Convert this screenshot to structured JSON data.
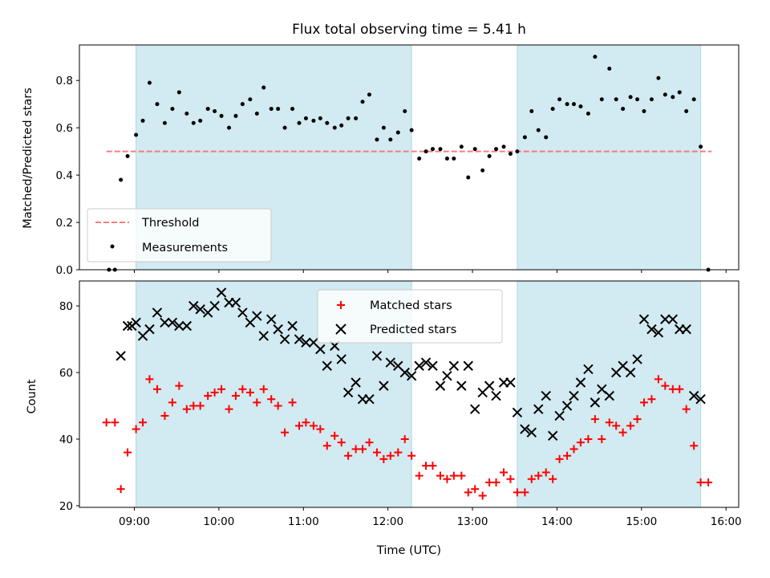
{
  "chart_data": {
    "type": "scatter",
    "title": "Flux total observing time = 5.41 h",
    "xlabel": "Time (UTC)",
    "xlim": [
      8.35,
      16.15
    ],
    "xticks": [
      {
        "value": 9,
        "label": "09:00"
      },
      {
        "value": 10,
        "label": "10:00"
      },
      {
        "value": 11,
        "label": "11:00"
      },
      {
        "value": 12,
        "label": "12:00"
      },
      {
        "value": 13,
        "label": "13:00"
      },
      {
        "value": 14,
        "label": "14:00"
      },
      {
        "value": 15,
        "label": "15:00"
      },
      {
        "value": 16,
        "label": "16:00"
      }
    ],
    "shaded_spans": [
      [
        9.02,
        12.28
      ],
      [
        13.53,
        15.7
      ]
    ],
    "shade_color": "#add8e6",
    "panels": [
      {
        "ylabel": "Matched/Predicted stars",
        "ylim": [
          0,
          0.95
        ],
        "yticks": [
          {
            "value": 0,
            "label": "0.0"
          },
          {
            "value": 0.2,
            "label": "0.2"
          },
          {
            "value": 0.4,
            "label": "0.4"
          },
          {
            "value": 0.6,
            "label": "0.6"
          },
          {
            "value": 0.8,
            "label": "0.8"
          }
        ],
        "threshold": {
          "name": "Threshold",
          "value": 0.5,
          "x_range": [
            8.67,
            15.83
          ],
          "color": "#f08080"
        },
        "legend_position": "lower-left",
        "legend": [
          {
            "name": "Threshold",
            "marker": "dashed-line",
            "color": "#f08080"
          },
          {
            "name": "Measurements",
            "marker": "dot",
            "color": "#000000"
          }
        ],
        "series": [
          {
            "name": "Measurements",
            "marker": "dot",
            "color": "#000000",
            "x": [
              8.7,
              8.77,
              8.84,
              8.92,
              9.02,
              9.1,
              9.18,
              9.27,
              9.36,
              9.45,
              9.53,
              9.62,
              9.7,
              9.78,
              9.87,
              9.95,
              10.03,
              10.12,
              10.2,
              10.28,
              10.37,
              10.45,
              10.53,
              10.62,
              10.7,
              10.78,
              10.87,
              10.95,
              11.03,
              11.12,
              11.2,
              11.28,
              11.37,
              11.45,
              11.53,
              11.62,
              11.7,
              11.78,
              11.87,
              11.95,
              12.03,
              12.12,
              12.2,
              12.28,
              12.37,
              12.45,
              12.53,
              12.62,
              12.7,
              12.78,
              12.87,
              12.95,
              13.03,
              13.12,
              13.2,
              13.28,
              13.37,
              13.45,
              13.53,
              13.62,
              13.7,
              13.78,
              13.87,
              13.95,
              14.03,
              14.12,
              14.2,
              14.28,
              14.37,
              14.45,
              14.53,
              14.62,
              14.7,
              14.78,
              14.87,
              14.95,
              15.03,
              15.12,
              15.2,
              15.28,
              15.37,
              15.45,
              15.53,
              15.62,
              15.7,
              15.79
            ],
            "y": [
              0.0,
              0.0,
              0.38,
              0.48,
              0.57,
              0.63,
              0.79,
              0.7,
              0.62,
              0.68,
              0.75,
              0.66,
              0.62,
              0.63,
              0.68,
              0.67,
              0.65,
              0.6,
              0.65,
              0.7,
              0.72,
              0.66,
              0.77,
              0.68,
              0.68,
              0.6,
              0.68,
              0.62,
              0.64,
              0.63,
              0.64,
              0.62,
              0.6,
              0.61,
              0.64,
              0.64,
              0.71,
              0.74,
              0.55,
              0.6,
              0.55,
              0.58,
              0.67,
              0.59,
              0.47,
              0.5,
              0.51,
              0.51,
              0.47,
              0.47,
              0.52,
              0.39,
              0.51,
              0.42,
              0.48,
              0.51,
              0.52,
              0.49,
              0.5,
              0.56,
              0.67,
              0.59,
              0.56,
              0.68,
              0.72,
              0.7,
              0.7,
              0.69,
              0.66,
              0.9,
              0.72,
              0.85,
              0.72,
              0.68,
              0.73,
              0.72,
              0.67,
              0.72,
              0.81,
              0.74,
              0.73,
              0.75,
              0.67,
              0.72,
              0.52,
              0.0
            ]
          }
        ]
      },
      {
        "ylabel": "Count",
        "ylim": [
          19.5,
          87.5
        ],
        "yticks": [
          {
            "value": 20,
            "label": "20"
          },
          {
            "value": 40,
            "label": "40"
          },
          {
            "value": 60,
            "label": "60"
          },
          {
            "value": 80,
            "label": "80"
          }
        ],
        "legend_position": "upper-center",
        "legend": [
          {
            "name": "Matched stars",
            "marker": "plus",
            "color": "#ff0000"
          },
          {
            "name": "Predicted stars",
            "marker": "x",
            "color": "#000000"
          }
        ],
        "series": [
          {
            "name": "Matched stars",
            "marker": "plus",
            "color": "#ff0000",
            "x": [
              8.67,
              8.77,
              8.84,
              8.92,
              9.02,
              9.1,
              9.18,
              9.27,
              9.36,
              9.45,
              9.53,
              9.62,
              9.7,
              9.78,
              9.87,
              9.95,
              10.03,
              10.12,
              10.2,
              10.28,
              10.37,
              10.45,
              10.53,
              10.62,
              10.7,
              10.78,
              10.87,
              10.95,
              11.03,
              11.12,
              11.2,
              11.28,
              11.37,
              11.45,
              11.53,
              11.62,
              11.7,
              11.78,
              11.87,
              11.95,
              12.03,
              12.12,
              12.2,
              12.28,
              12.37,
              12.45,
              12.53,
              12.62,
              12.7,
              12.78,
              12.87,
              12.95,
              13.03,
              13.12,
              13.2,
              13.28,
              13.37,
              13.45,
              13.53,
              13.62,
              13.7,
              13.78,
              13.87,
              13.95,
              14.03,
              14.12,
              14.2,
              14.28,
              14.37,
              14.45,
              14.53,
              14.62,
              14.7,
              14.78,
              14.87,
              14.95,
              15.03,
              15.12,
              15.2,
              15.28,
              15.37,
              15.45,
              15.53,
              15.62,
              15.7,
              15.79
            ],
            "y": [
              45,
              45,
              25,
              36,
              43,
              45,
              58,
              55,
              47,
              51,
              56,
              49,
              50,
              50,
              53,
              54,
              55,
              49,
              53,
              55,
              54,
              51,
              55,
              52,
              50,
              42,
              51,
              44,
              45,
              44,
              43,
              38,
              41,
              39,
              35,
              37,
              37,
              39,
              36,
              34,
              35,
              36,
              40,
              35,
              29,
              32,
              32,
              29,
              28,
              29,
              29,
              24,
              25,
              23,
              27,
              27,
              30,
              28,
              24,
              24,
              28,
              29,
              30,
              28,
              34,
              35,
              37,
              39,
              40,
              46,
              40,
              45,
              44,
              42,
              44,
              46,
              51,
              52,
              58,
              56,
              55,
              55,
              49,
              38,
              27,
              27
            ]
          },
          {
            "name": "Predicted stars",
            "marker": "x",
            "color": "#000000",
            "x": [
              8.84,
              8.92,
              8.97,
              9.02,
              9.1,
              9.18,
              9.27,
              9.36,
              9.45,
              9.53,
              9.62,
              9.7,
              9.78,
              9.87,
              9.95,
              10.03,
              10.12,
              10.2,
              10.28,
              10.37,
              10.45,
              10.53,
              10.62,
              10.7,
              10.78,
              10.87,
              10.95,
              11.03,
              11.12,
              11.2,
              11.28,
              11.37,
              11.45,
              11.53,
              11.62,
              11.7,
              11.78,
              11.87,
              11.95,
              12.03,
              12.12,
              12.2,
              12.28,
              12.37,
              12.45,
              12.53,
              12.62,
              12.7,
              12.78,
              12.87,
              12.95,
              13.03,
              13.12,
              13.2,
              13.28,
              13.37,
              13.45,
              13.53,
              13.62,
              13.7,
              13.78,
              13.87,
              13.95,
              14.03,
              14.12,
              14.2,
              14.28,
              14.37,
              14.45,
              14.53,
              14.62,
              14.7,
              14.78,
              14.87,
              14.95,
              15.03,
              15.12,
              15.2,
              15.28,
              15.37,
              15.45,
              15.53,
              15.62,
              15.7
            ],
            "y": [
              65,
              74,
              74,
              75,
              71,
              73,
              78,
              75,
              75,
              74,
              74,
              80,
              79,
              78,
              80,
              84,
              81,
              81,
              78,
              75,
              77,
              71,
              76,
              73,
              70,
              74,
              70,
              69,
              69,
              67,
              62,
              68,
              64,
              54,
              57,
              52,
              52,
              65,
              56,
              63,
              62,
              60,
              59,
              62,
              63,
              62,
              56,
              59,
              62,
              56,
              62,
              49,
              54,
              56,
              53,
              57,
              57,
              48,
              43,
              42,
              49,
              53,
              41,
              47,
              50,
              53,
              57,
              61,
              51,
              55,
              53,
              60,
              62,
              60,
              64,
              76,
              73,
              72,
              76,
              76,
              73,
              73,
              53,
              52
            ]
          }
        ]
      }
    ]
  }
}
